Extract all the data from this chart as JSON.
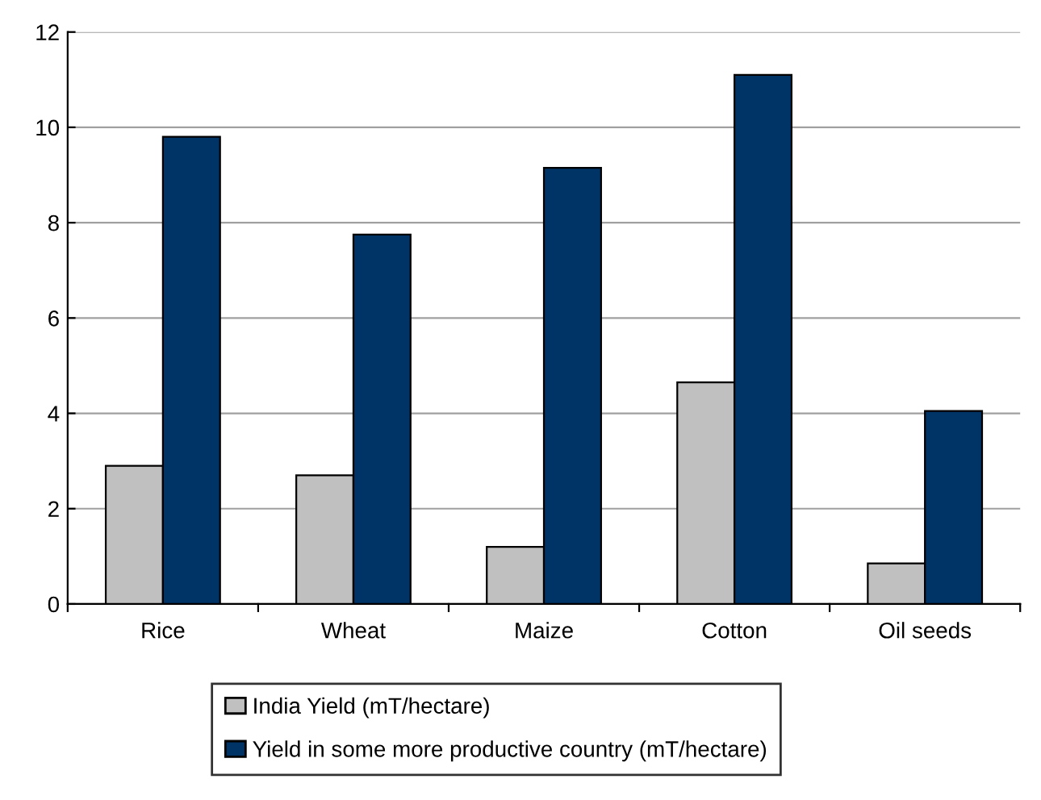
{
  "chart_data": {
    "type": "bar",
    "categories": [
      "Rice",
      "Wheat",
      "Maize",
      "Cotton",
      "Oil seeds"
    ],
    "series": [
      {
        "name": "India Yield (mT/hectare)",
        "color": "#c0c0c0",
        "values": [
          2.9,
          2.7,
          1.2,
          4.65,
          0.85
        ]
      },
      {
        "name": "Yield in some more productive country (mT/hectare)",
        "color": "#003366",
        "values": [
          9.8,
          7.75,
          9.15,
          11.1,
          4.05
        ]
      }
    ],
    "ylim": [
      0,
      12
    ],
    "yticks": [
      0,
      2,
      4,
      6,
      8,
      10,
      12
    ],
    "grid": "y",
    "legend": "bottom"
  }
}
